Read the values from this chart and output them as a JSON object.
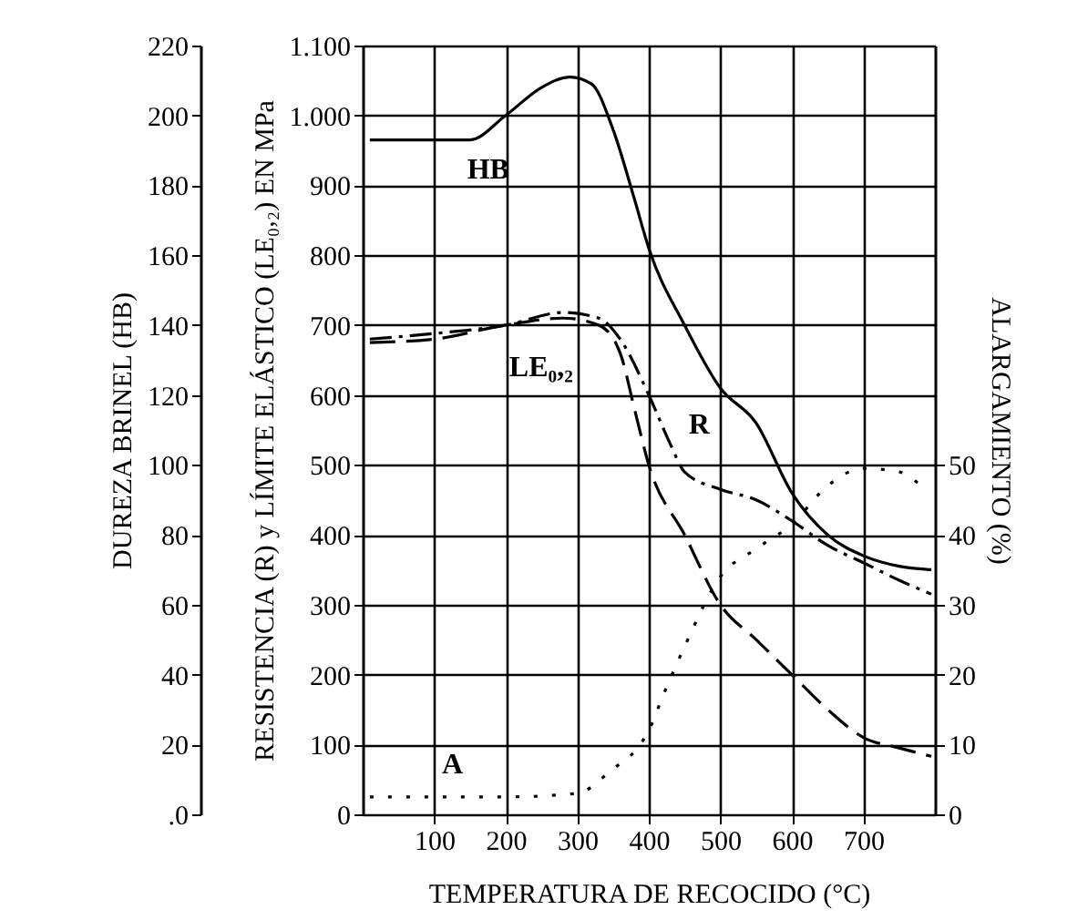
{
  "chart_data": {
    "type": "line",
    "xlabel": "TEMPERATURA DE RECOCIDO  (°C)",
    "ylabel": "DUREZA BRINEL (HB)",
    "y2label": "RESISTENCIA (R) y LÍMITE ELÁSTICO (LE₀,₂) EN MPa",
    "y3label": "ALARGAMIENTO  (%)",
    "xlim": [
      0,
      800
    ],
    "xticks": [
      100,
      200,
      300,
      400,
      500,
      600,
      700
    ],
    "ylim": [
      0,
      220
    ],
    "yticks": [
      {
        "value": 0,
        "label": ".0"
      },
      20,
      40,
      60,
      80,
      100,
      120,
      140,
      160,
      180,
      200,
      220
    ],
    "y2lim": [
      0,
      1100
    ],
    "y2ticks": [
      0,
      100,
      200,
      300,
      400,
      500,
      600,
      700,
      800,
      900,
      {
        "value": 1000,
        "label": "1.000"
      },
      {
        "value": 1100,
        "label": "1.100"
      }
    ],
    "y3lim": [
      0,
      110
    ],
    "y3ticks": [
      0,
      10,
      20,
      30,
      40,
      50
    ],
    "grid": true,
    "marker": "none",
    "series": [
      {
        "name": "HB",
        "color": "#000000",
        "line_style": "solid",
        "axis": "y",
        "x": [
          10,
          150,
          200,
          250,
          290,
          320,
          350,
          380,
          400,
          450,
          500,
          550,
          600,
          650,
          700,
          750,
          795
        ],
        "values": [
          193,
          193,
          200,
          208,
          211,
          209,
          196,
          176,
          162,
          140,
          122,
          112,
          92,
          80,
          74,
          71,
          70
        ]
      },
      {
        "name": "R",
        "color": "#000000",
        "line_style": "dashdot",
        "axis": "y2",
        "x": [
          10,
          100,
          200,
          280,
          330,
          360,
          400,
          430,
          450,
          500,
          550,
          600,
          650,
          700,
          750,
          795
        ],
        "values": [
          680,
          688,
          700,
          718,
          710,
          680,
          600,
          530,
          490,
          465,
          450,
          420,
          385,
          360,
          335,
          315
        ]
      },
      {
        "name": "LE₀,₂",
        "color": "#000000",
        "line_style": "dashed",
        "axis": "y2",
        "x": [
          10,
          100,
          200,
          280,
          330,
          360,
          380,
          400,
          450,
          500,
          550,
          600,
          650,
          700,
          750,
          795
        ],
        "values": [
          675,
          680,
          700,
          710,
          700,
          660,
          580,
          500,
          400,
          300,
          250,
          200,
          150,
          110,
          95,
          83
        ]
      },
      {
        "name": "A",
        "color": "#000000",
        "line_style": "dotted",
        "axis": "y3",
        "x": [
          10,
          100,
          200,
          300,
          350,
          380,
          400,
          420,
          450,
          500,
          550,
          600,
          650,
          700,
          750,
          790
        ],
        "values": [
          2.5,
          2.5,
          2.5,
          3,
          6.5,
          9,
          12,
          17,
          24,
          34,
          38,
          41.5,
          47,
          49.5,
          49,
          46
        ]
      }
    ]
  }
}
